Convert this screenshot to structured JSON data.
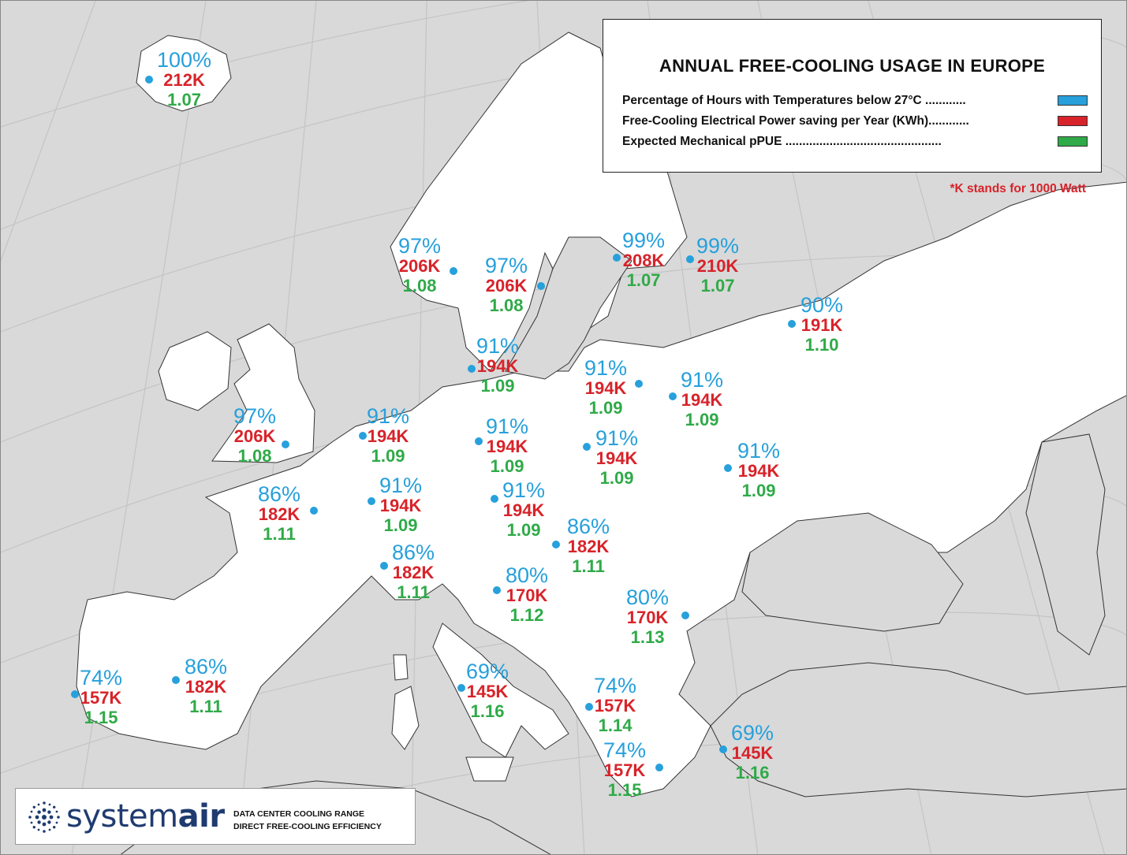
{
  "legend": {
    "title": "ANNUAL FREE-COOLING USAGE IN EUROPE",
    "rows": [
      {
        "label": "Percentage of Hours with Temperatures below 27°C ............",
        "color": "#27a0dc"
      },
      {
        "label": "Free-Cooling Electrical Power saving per Year (KWh)............",
        "color": "#d8232a"
      },
      {
        "label": "Expected Mechanical pPUE ..............................................",
        "color": "#2faa48"
      }
    ],
    "note": "*K stands for 1000 Watt"
  },
  "brand": {
    "name_light": "system",
    "name_bold": "air",
    "tagline_1": "DATA CENTER COOLING RANGE",
    "tagline_2": "DIRECT FREE-COOLING EFFICIENCY"
  },
  "colors": {
    "sea": "#d9d9d9",
    "land": "#ffffff",
    "non_covered_land": "#d9d9d9",
    "percentage": "#27a0dc",
    "power": "#d8232a",
    "pue": "#2faa48"
  },
  "locations": [
    {
      "pct": "100%",
      "power": "212K",
      "pue": "1.07"
    },
    {
      "pct": "97%",
      "power": "206K",
      "pue": "1.08"
    },
    {
      "pct": "97%",
      "power": "206K",
      "pue": "1.08"
    },
    {
      "pct": "99%",
      "power": "208K",
      "pue": "1.07"
    },
    {
      "pct": "99%",
      "power": "210K",
      "pue": "1.07"
    },
    {
      "pct": "90%",
      "power": "191K",
      "pue": "1.10"
    },
    {
      "pct": "91%",
      "power": "194K",
      "pue": "1.09"
    },
    {
      "pct": "91%",
      "power": "194K",
      "pue": "1.09"
    },
    {
      "pct": "91%",
      "power": "194K",
      "pue": "1.09"
    },
    {
      "pct": "97%",
      "power": "206K",
      "pue": "1.08"
    },
    {
      "pct": "91%",
      "power": "194K",
      "pue": "1.09"
    },
    {
      "pct": "91%",
      "power": "194K",
      "pue": "1.09"
    },
    {
      "pct": "91%",
      "power": "194K",
      "pue": "1.09"
    },
    {
      "pct": "91%",
      "power": "194K",
      "pue": "1.09"
    },
    {
      "pct": "86%",
      "power": "182K",
      "pue": "1.11"
    },
    {
      "pct": "91%",
      "power": "194K",
      "pue": "1.09"
    },
    {
      "pct": "91%",
      "power": "194K",
      "pue": "1.09"
    },
    {
      "pct": "86%",
      "power": "182K",
      "pue": "1.11"
    },
    {
      "pct": "86%",
      "power": "182K",
      "pue": "1.11"
    },
    {
      "pct": "80%",
      "power": "170K",
      "pue": "1.12"
    },
    {
      "pct": "80%",
      "power": "170K",
      "pue": "1.13"
    },
    {
      "pct": "74%",
      "power": "157K",
      "pue": "1.15"
    },
    {
      "pct": "86%",
      "power": "182K",
      "pue": "1.11"
    },
    {
      "pct": "69%",
      "power": "145K",
      "pue": "1.16"
    },
    {
      "pct": "74%",
      "power": "157K",
      "pue": "1.14"
    },
    {
      "pct": "69%",
      "power": "145K",
      "pue": "1.16"
    },
    {
      "pct": "74%",
      "power": "157K",
      "pue": "1.15"
    }
  ]
}
